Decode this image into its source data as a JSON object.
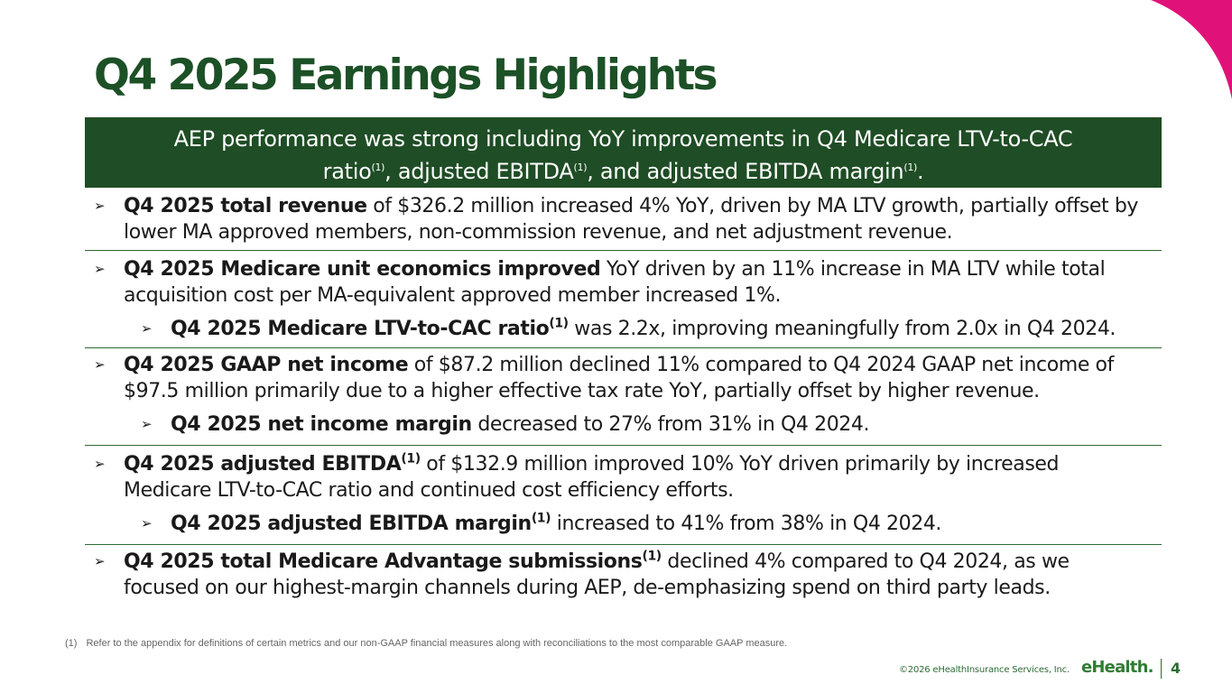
{
  "title": "Q4 2025 Earnings Highlights",
  "banner": {
    "line1": "AEP performance was strong including YoY improvements in Q4 Medicare LTV-to-CAC",
    "line2a": "ratio",
    "sup1": "(1)",
    "line2b": ", adjusted EBITDA",
    "sup2": "(1)",
    "line2c": ", and adjusted EBITDA margin",
    "sup3": "(1)",
    "line2d": "."
  },
  "sections": [
    {
      "bullets": [
        {
          "bold": "Q4 2025 total revenue",
          "sup": "",
          "rest": " of $326.2 million increased 4% YoY, driven by MA LTV growth, partially offset by lower MA approved members, non-commission revenue, and net adjustment revenue."
        }
      ]
    },
    {
      "bullets": [
        {
          "bold": "Q4 2025 Medicare unit economics improved",
          "sup": "",
          "rest": " YoY driven by an 11% increase in MA LTV while total acquisition cost per MA-equivalent approved member increased 1%."
        },
        {
          "bold": "Q4 2025 Medicare LTV-to-CAC ratio",
          "sup": "(1)",
          "rest": " was 2.2x, improving meaningfully from 2.0x in Q4 2024."
        }
      ]
    },
    {
      "bullets": [
        {
          "bold": "Q4 2025 GAAP net income",
          "sup": "",
          "rest": " of $87.2 million declined 11% compared to Q4 2024 GAAP net income of $97.5 million primarily due to a higher effective tax rate YoY, partially offset by higher revenue."
        },
        {
          "bold": "Q4 2025 net income margin",
          "sup": "",
          "rest": " decreased to 27% from 31% in Q4 2024."
        }
      ]
    },
    {
      "bullets": [
        {
          "bold": "Q4 2025 adjusted EBITDA",
          "sup": "(1)",
          "rest": " of $132.9 million improved 10% YoY driven primarily by increased Medicare LTV-to-CAC ratio and continued cost efficiency efforts."
        },
        {
          "bold": "Q4 2025 adjusted EBITDA margin",
          "sup": "(1)",
          "rest": " increased to 41% from 38% in Q4 2024."
        }
      ]
    },
    {
      "bullets": [
        {
          "bold": "Q4 2025 total Medicare Advantage submissions",
          "sup": "(1)",
          "rest": " declined 4% compared to Q4 2024, as we focused on our highest-margin channels during AEP, de-emphasizing spend on third party leads."
        }
      ]
    }
  ],
  "bullet_glyph": "➢",
  "footnote": {
    "num": "(1)",
    "text": "Refer to the appendix for definitions of certain metrics and our non-GAAP financial measures along with reconciliations to the most comparable GAAP measure."
  },
  "footer": {
    "copyright": "©2026 eHealthInsurance Services, Inc.",
    "logo": "eHealth.",
    "page_number": "4"
  },
  "colors": {
    "title_green": "#1c5026",
    "banner_green": "#1f4d25",
    "accent_magenta": "#e0127a"
  }
}
